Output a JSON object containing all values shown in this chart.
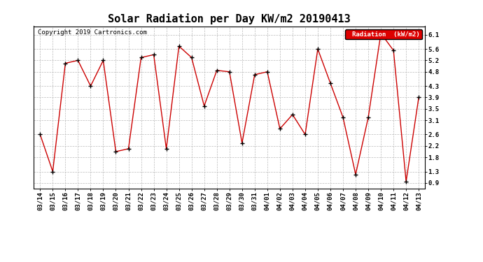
{
  "title": "Solar Radiation per Day KW/m2 20190413",
  "copyright": "Copyright 2019 Cartronics.com",
  "legend_label": "Radiation  (kW/m2)",
  "dates": [
    "03/14",
    "03/15",
    "03/16",
    "03/17",
    "03/18",
    "03/19",
    "03/20",
    "03/21",
    "03/22",
    "03/23",
    "03/24",
    "03/25",
    "03/26",
    "03/27",
    "03/28",
    "03/29",
    "03/30",
    "03/31",
    "04/01",
    "04/02",
    "04/03",
    "04/04",
    "04/05",
    "04/06",
    "04/07",
    "04/08",
    "04/09",
    "04/10",
    "04/11",
    "04/12",
    "04/13"
  ],
  "values": [
    2.6,
    1.3,
    5.1,
    5.2,
    4.3,
    5.2,
    2.0,
    2.1,
    5.3,
    5.4,
    2.1,
    5.7,
    5.3,
    3.6,
    4.85,
    4.8,
    2.3,
    4.7,
    4.8,
    2.8,
    3.3,
    2.6,
    5.6,
    4.4,
    3.2,
    1.2,
    3.2,
    6.15,
    5.55,
    0.95,
    3.9
  ],
  "ylim": [
    0.7,
    6.4
  ],
  "yticks": [
    0.9,
    1.3,
    1.8,
    2.2,
    2.6,
    3.1,
    3.5,
    3.9,
    4.3,
    4.8,
    5.2,
    5.6,
    6.1
  ],
  "line_color": "#cc0000",
  "marker_color": "#000000",
  "bg_color": "#ffffff",
  "grid_color": "#bbbbbb",
  "legend_bg": "#dd0000",
  "legend_text_color": "#ffffff",
  "title_fontsize": 11,
  "label_fontsize": 6.5,
  "copyright_fontsize": 6.5
}
